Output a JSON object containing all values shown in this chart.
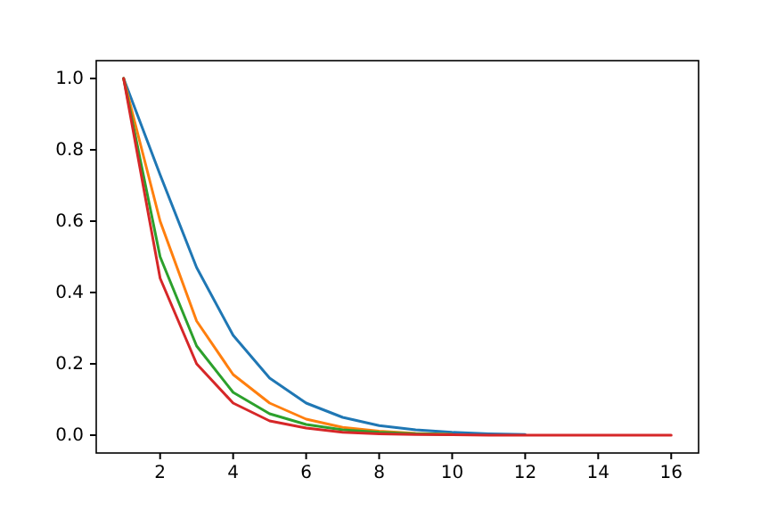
{
  "chart_data": {
    "type": "line",
    "x": [
      1,
      2,
      3,
      4,
      5,
      6,
      7,
      8,
      9,
      10,
      11,
      12,
      13,
      14,
      15,
      16
    ],
    "series": [
      {
        "color": "#1f77b4",
        "values": [
          1,
          0.73,
          0.47,
          0.28,
          0.16,
          0.09,
          0.05,
          0.027,
          0.015,
          0.008,
          0.004,
          0.002,
          null,
          null,
          null,
          null
        ]
      },
      {
        "color": "#ff7f0e",
        "values": [
          1,
          0.6,
          0.32,
          0.17,
          0.09,
          0.045,
          0.022,
          0.011,
          0.005,
          0.002,
          null,
          null,
          null,
          null,
          null,
          null
        ]
      },
      {
        "color": "#2ca02c",
        "values": [
          1,
          0.5,
          0.25,
          0.12,
          0.06,
          0.03,
          0.015,
          0.008,
          0.004,
          0.002,
          null,
          null,
          null,
          null,
          null,
          null
        ]
      },
      {
        "color": "#d62728",
        "values": [
          1,
          0.44,
          0.2,
          0.09,
          0.04,
          0.02,
          0.008,
          0.004,
          0.002,
          0.001,
          0,
          0,
          0,
          0,
          0,
          0
        ]
      }
    ],
    "xlim": [
      0.25,
      16.75
    ],
    "xticks": [
      2,
      4,
      6,
      8,
      10,
      12,
      14,
      16
    ],
    "ylim": [
      -0.05,
      1.05
    ],
    "yticks": [
      {
        "value": 0,
        "label": "0.0"
      },
      {
        "value": 0.2,
        "label": "0.2"
      },
      {
        "value": 0.4,
        "label": "0.4"
      },
      {
        "value": 0.6,
        "label": "0.6"
      },
      {
        "value": 0.8,
        "label": "0.8"
      },
      {
        "value": 1,
        "label": "1.0"
      }
    ]
  }
}
